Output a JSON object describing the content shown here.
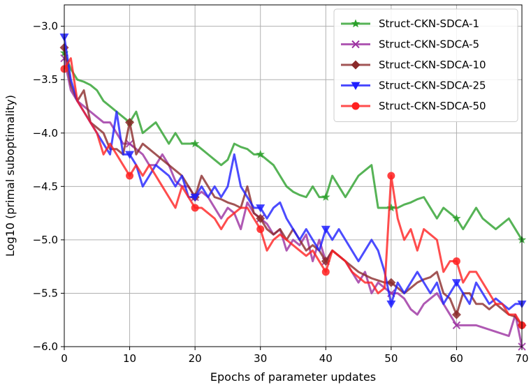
{
  "chart_data": {
    "type": "line",
    "xlabel": "Epochs of parameter updates",
    "ylabel": "Log10 (primal suboptimality)",
    "xlim": [
      0,
      70
    ],
    "ylim": [
      -6.0,
      -2.8
    ],
    "x_ticks": [
      0,
      10,
      20,
      30,
      40,
      50,
      60,
      70
    ],
    "y_ticks": [
      -6.0,
      -5.5,
      -5.0,
      -4.5,
      -4.0,
      -3.5,
      -3.0
    ],
    "x_tick_labels": [
      "0",
      "10",
      "20",
      "30",
      "40",
      "50",
      "60",
      "70"
    ],
    "y_tick_labels": [
      "−6.0",
      "−5.5",
      "−5.0",
      "−4.5",
      "−4.0",
      "−3.5",
      "−3.0"
    ],
    "grid": true,
    "legend_position": "top-right",
    "series": [
      {
        "name": "Struct-CKN-SDCA-1",
        "color": "#2ca02c",
        "marker": "star",
        "marker_every": 10,
        "x": [
          0,
          1,
          2,
          3,
          4,
          5,
          6,
          7,
          8,
          9,
          10,
          11,
          12,
          13,
          14,
          15,
          16,
          17,
          18,
          19,
          20,
          21,
          22,
          23,
          24,
          25,
          26,
          27,
          28,
          29,
          30,
          31,
          32,
          33,
          34,
          35,
          36,
          37,
          38,
          39,
          40,
          41,
          42,
          43,
          44,
          45,
          46,
          47,
          48,
          49,
          50,
          51,
          52,
          53,
          54,
          55,
          56,
          57,
          58,
          59,
          60,
          61,
          62,
          63,
          64,
          65,
          66,
          67,
          68,
          69,
          70
        ],
        "y": [
          -3.25,
          -3.4,
          -3.5,
          -3.52,
          -3.55,
          -3.6,
          -3.7,
          -3.75,
          -3.8,
          -3.85,
          -3.9,
          -3.8,
          -4.0,
          -3.95,
          -3.9,
          -4.0,
          -4.1,
          -4.0,
          -4.1,
          -4.1,
          -4.1,
          -4.15,
          -4.2,
          -4.25,
          -4.3,
          -4.25,
          -4.1,
          -4.13,
          -4.15,
          -4.2,
          -4.2,
          -4.25,
          -4.3,
          -4.4,
          -4.5,
          -4.55,
          -4.58,
          -4.6,
          -4.5,
          -4.6,
          -4.6,
          -4.4,
          -4.5,
          -4.6,
          -4.5,
          -4.4,
          -4.35,
          -4.3,
          -4.7,
          -4.7,
          -4.7,
          -4.7,
          -4.67,
          -4.65,
          -4.62,
          -4.6,
          -4.7,
          -4.8,
          -4.7,
          -4.75,
          -4.8,
          -4.9,
          -4.8,
          -4.7,
          -4.8,
          -4.85,
          -4.9,
          -4.85,
          -4.8,
          -4.9,
          -5.0
        ]
      },
      {
        "name": "Struct-CKN-SDCA-5",
        "color": "#9b30a0",
        "marker": "x",
        "marker_every": 10,
        "x": [
          0,
          1,
          2,
          3,
          4,
          5,
          6,
          7,
          8,
          9,
          10,
          11,
          12,
          13,
          14,
          15,
          16,
          17,
          18,
          19,
          20,
          21,
          22,
          23,
          24,
          25,
          26,
          27,
          28,
          29,
          30,
          31,
          32,
          33,
          34,
          35,
          36,
          37,
          38,
          39,
          40,
          41,
          42,
          43,
          44,
          45,
          46,
          47,
          48,
          49,
          50,
          51,
          52,
          53,
          54,
          55,
          56,
          57,
          58,
          59,
          60,
          61,
          62,
          63,
          64,
          65,
          66,
          67,
          68,
          69,
          70
        ],
        "y": [
          -3.3,
          -3.6,
          -3.7,
          -3.75,
          -3.8,
          -3.85,
          -3.9,
          -3.9,
          -4.0,
          -4.1,
          -4.1,
          -4.15,
          -4.2,
          -4.3,
          -4.3,
          -4.2,
          -4.3,
          -4.45,
          -4.5,
          -4.5,
          -4.6,
          -4.55,
          -4.6,
          -4.7,
          -4.8,
          -4.7,
          -4.75,
          -4.9,
          -4.65,
          -4.75,
          -4.8,
          -4.85,
          -4.95,
          -4.9,
          -5.1,
          -5.0,
          -5.05,
          -4.95,
          -5.2,
          -5.0,
          -5.2,
          -5.1,
          -5.15,
          -5.2,
          -5.3,
          -5.4,
          -5.3,
          -5.5,
          -5.4,
          -5.45,
          -5.5,
          -5.5,
          -5.55,
          -5.65,
          -5.7,
          -5.6,
          -5.55,
          -5.5,
          -5.6,
          -5.7,
          -5.8,
          -5.8,
          -5.8,
          -5.8,
          -5.82,
          -5.84,
          -5.86,
          -5.88,
          -5.9,
          -5.7,
          -6.0
        ]
      },
      {
        "name": "Struct-CKN-SDCA-10",
        "color": "#8b2a2a",
        "marker": "diamond",
        "marker_every": 10,
        "x": [
          0,
          1,
          2,
          3,
          4,
          5,
          6,
          7,
          8,
          9,
          10,
          11,
          12,
          13,
          14,
          15,
          16,
          17,
          18,
          19,
          20,
          21,
          22,
          23,
          24,
          25,
          26,
          27,
          28,
          29,
          30,
          31,
          32,
          33,
          34,
          35,
          36,
          37,
          38,
          39,
          40,
          41,
          42,
          43,
          44,
          45,
          46,
          47,
          48,
          49,
          50,
          51,
          52,
          53,
          54,
          55,
          56,
          57,
          58,
          59,
          60,
          61,
          62,
          63,
          64,
          65,
          66,
          67,
          68,
          69,
          70
        ],
        "y": [
          -3.2,
          -3.55,
          -3.7,
          -3.6,
          -3.9,
          -3.95,
          -4.0,
          -4.15,
          -4.15,
          -4.2,
          -3.9,
          -4.2,
          -4.1,
          -4.15,
          -4.2,
          -4.25,
          -4.3,
          -4.35,
          -4.4,
          -4.5,
          -4.6,
          -4.4,
          -4.5,
          -4.6,
          -4.62,
          -4.65,
          -4.67,
          -4.7,
          -4.5,
          -4.75,
          -4.8,
          -4.9,
          -4.95,
          -4.9,
          -5.0,
          -4.9,
          -5.0,
          -5.1,
          -5.05,
          -5.1,
          -5.2,
          -5.1,
          -5.15,
          -5.2,
          -5.25,
          -5.3,
          -5.33,
          -5.36,
          -5.38,
          -5.4,
          -5.4,
          -5.45,
          -5.5,
          -5.45,
          -5.4,
          -5.37,
          -5.35,
          -5.3,
          -5.5,
          -5.55,
          -5.7,
          -5.5,
          -5.5,
          -5.6,
          -5.6,
          -5.65,
          -5.6,
          -5.65,
          -5.7,
          -5.72,
          -5.8
        ]
      },
      {
        "name": "Struct-CKN-SDCA-25",
        "color": "#1f1fff",
        "marker": "triangle-down",
        "marker_every": 10,
        "x": [
          0,
          1,
          2,
          3,
          4,
          5,
          6,
          7,
          8,
          9,
          10,
          11,
          12,
          13,
          14,
          15,
          16,
          17,
          18,
          19,
          20,
          21,
          22,
          23,
          24,
          25,
          26,
          27,
          28,
          29,
          30,
          31,
          32,
          33,
          34,
          35,
          36,
          37,
          38,
          39,
          40,
          41,
          42,
          43,
          44,
          45,
          46,
          47,
          48,
          49,
          50,
          51,
          52,
          53,
          54,
          55,
          56,
          57,
          58,
          59,
          60,
          61,
          62,
          63,
          64,
          65,
          66,
          67,
          68,
          69,
          70
        ],
        "y": [
          -3.1,
          -3.5,
          -3.7,
          -3.8,
          -3.9,
          -4.0,
          -4.1,
          -4.2,
          -3.8,
          -4.2,
          -4.2,
          -4.3,
          -4.5,
          -4.4,
          -4.3,
          -4.35,
          -4.4,
          -4.5,
          -4.4,
          -4.6,
          -4.6,
          -4.5,
          -4.6,
          -4.5,
          -4.6,
          -4.5,
          -4.2,
          -4.5,
          -4.6,
          -4.7,
          -4.7,
          -4.8,
          -4.7,
          -4.65,
          -4.8,
          -4.9,
          -5.0,
          -4.9,
          -5.0,
          -5.1,
          -4.9,
          -5.0,
          -4.9,
          -5.0,
          -5.1,
          -5.2,
          -5.1,
          -5.0,
          -5.1,
          -5.3,
          -5.6,
          -5.4,
          -5.5,
          -5.4,
          -5.3,
          -5.4,
          -5.5,
          -5.4,
          -5.6,
          -5.5,
          -5.4,
          -5.5,
          -5.6,
          -5.4,
          -5.5,
          -5.6,
          -5.55,
          -5.6,
          -5.65,
          -5.6,
          -5.6
        ]
      },
      {
        "name": "Struct-CKN-SDCA-50",
        "color": "#ff2020",
        "marker": "circle",
        "marker_every": 10,
        "x": [
          0,
          1,
          2,
          3,
          4,
          5,
          6,
          7,
          8,
          9,
          10,
          11,
          12,
          13,
          14,
          15,
          16,
          17,
          18,
          19,
          20,
          21,
          22,
          23,
          24,
          25,
          26,
          27,
          28,
          29,
          30,
          31,
          32,
          33,
          34,
          35,
          36,
          37,
          38,
          39,
          40,
          41,
          42,
          43,
          44,
          45,
          46,
          47,
          48,
          49,
          50,
          51,
          52,
          53,
          54,
          55,
          56,
          57,
          58,
          59,
          60,
          61,
          62,
          63,
          64,
          65,
          66,
          67,
          68,
          69,
          70
        ],
        "y": [
          -3.4,
          -3.3,
          -3.7,
          -3.8,
          -3.9,
          -4.0,
          -4.2,
          -4.1,
          -4.2,
          -4.3,
          -4.4,
          -4.3,
          -4.4,
          -4.3,
          -4.4,
          -4.5,
          -4.6,
          -4.7,
          -4.5,
          -4.6,
          -4.7,
          -4.7,
          -4.75,
          -4.8,
          -4.9,
          -4.8,
          -4.75,
          -4.7,
          -4.7,
          -4.8,
          -4.9,
          -5.1,
          -5.0,
          -4.95,
          -5.0,
          -5.05,
          -5.1,
          -5.15,
          -5.1,
          -5.2,
          -5.3,
          -5.1,
          -5.15,
          -5.2,
          -5.3,
          -5.35,
          -5.4,
          -5.4,
          -5.5,
          -5.45,
          -4.4,
          -4.8,
          -5.0,
          -4.9,
          -5.1,
          -4.9,
          -4.95,
          -5.0,
          -5.3,
          -5.2,
          -5.2,
          -5.4,
          -5.3,
          -5.3,
          -5.4,
          -5.5,
          -5.6,
          -5.6,
          -5.7,
          -5.7,
          -5.8
        ]
      }
    ]
  }
}
